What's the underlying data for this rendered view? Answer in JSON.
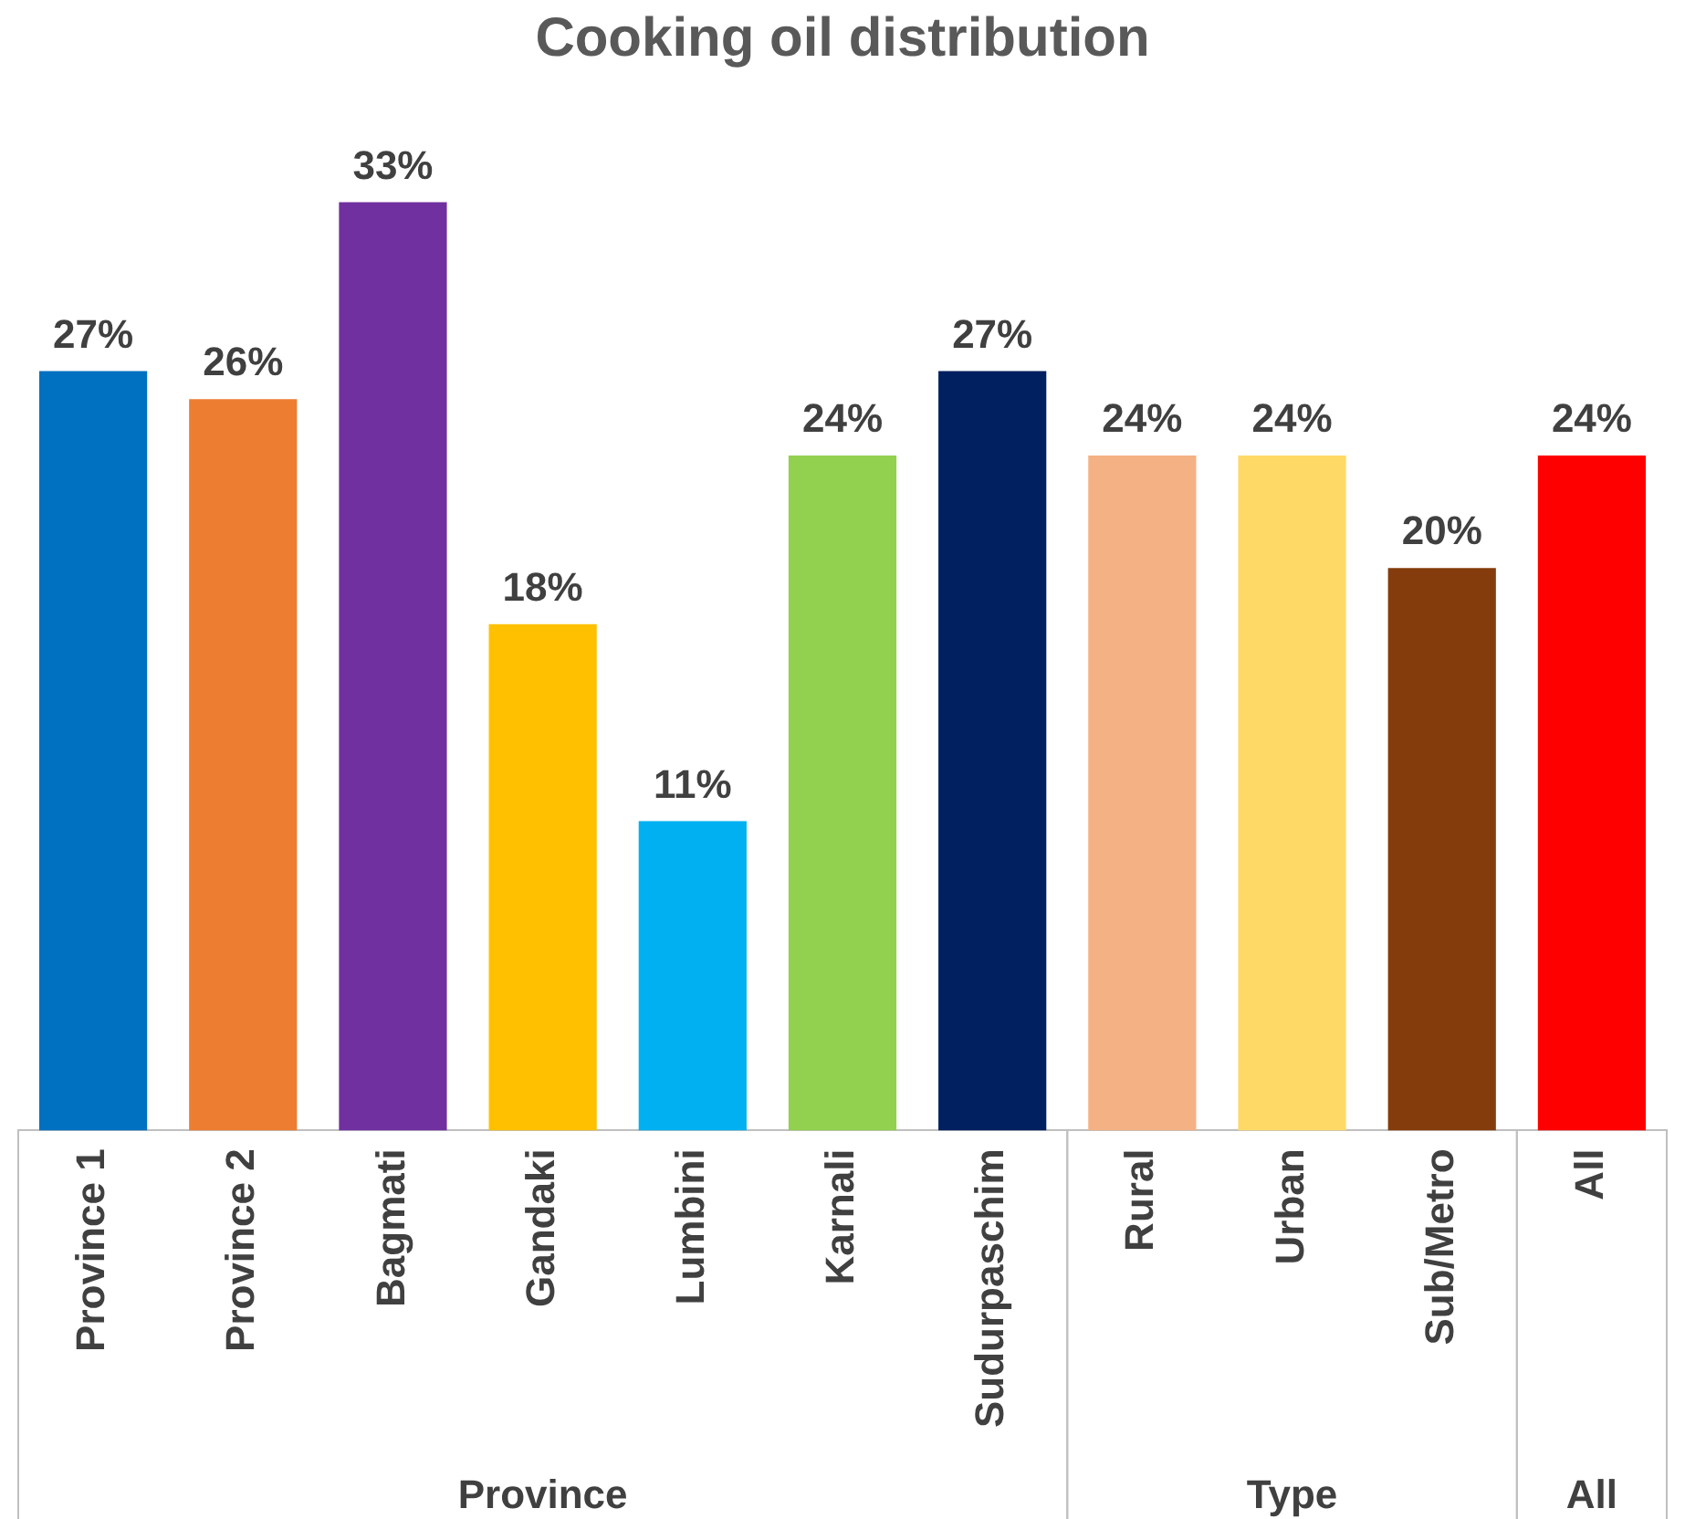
{
  "chart_data": {
    "type": "bar",
    "title": "Cooking oil distribution",
    "categories": [
      "Province 1",
      "Province 2",
      "Bagmati",
      "Gandaki",
      "Lumbini",
      "Karnali",
      "Sudurpaschim",
      "Rural",
      "Urban",
      "Sub/Metro",
      "All"
    ],
    "values": [
      27,
      26,
      33,
      18,
      11,
      24,
      27,
      24,
      24,
      20,
      24
    ],
    "colors": [
      "#0070c0",
      "#ed7d31",
      "#7030a0",
      "#ffc000",
      "#00b0f0",
      "#92d050",
      "#002060",
      "#f4b183",
      "#ffd966",
      "#843c0c",
      "#ff0000"
    ],
    "value_labels": [
      "27%",
      "26%",
      "33%",
      "18%",
      "11%",
      "24%",
      "27%",
      "24%",
      "24%",
      "20%",
      "24%"
    ],
    "annotations": [
      "Province",
      "Type",
      "All"
    ],
    "grid": false,
    "legend": false
  }
}
